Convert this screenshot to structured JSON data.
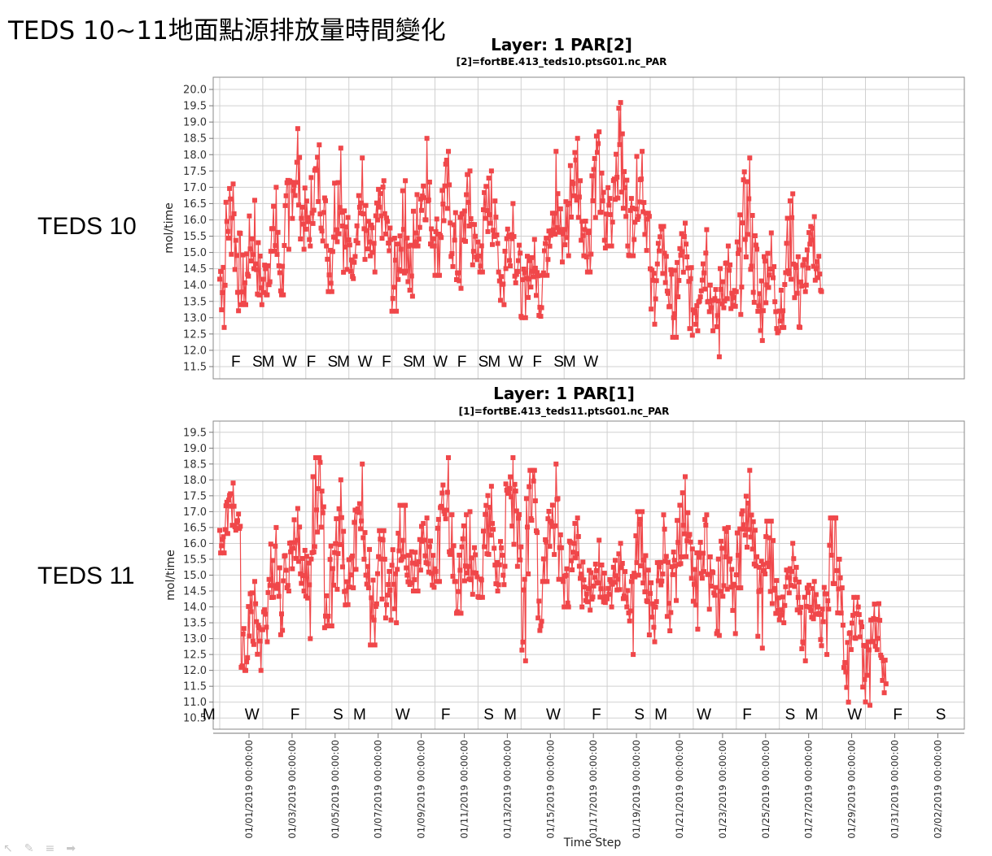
{
  "slide": {
    "title": "TEDS 10~11地面點源排放量時間變化",
    "labels": [
      "TEDS 10",
      "TEDS 11"
    ],
    "nav_icons": [
      "pointer-icon",
      "pen-icon",
      "menu-icon",
      "next-slide-icon"
    ]
  },
  "chart_data": [
    {
      "type": "line",
      "title": "Layer: 1 PAR[2]",
      "subtitle": "[2]=fortBE.413_teds10.ptsG01.nc_PAR",
      "ylabel": "mol/time",
      "xlabel": "",
      "ylim": [
        11.25,
        20.25
      ],
      "yticks": [
        11.5,
        12.0,
        12.5,
        13.0,
        13.5,
        14.0,
        14.5,
        15.0,
        15.5,
        16.0,
        16.5,
        17.0,
        17.5,
        18.0,
        18.5,
        19.0,
        19.5,
        20.0
      ],
      "x_range_days": [
        0,
        34
      ],
      "grid": true,
      "series_color": "#f0474a",
      "day_marks": [
        {
          "label": "F",
          "day": 0.75
        },
        {
          "label": "S",
          "day": 1.75
        },
        {
          "label": "M",
          "day": 2.25
        },
        {
          "label": "W",
          "day": 3.25
        },
        {
          "label": "F",
          "day": 4.25
        },
        {
          "label": "S",
          "day": 5.25
        },
        {
          "label": "M",
          "day": 5.75
        },
        {
          "label": "W",
          "day": 6.75
        },
        {
          "label": "F",
          "day": 7.75
        },
        {
          "label": "S",
          "day": 8.75
        },
        {
          "label": "M",
          "day": 9.25
        },
        {
          "label": "W",
          "day": 10.25
        },
        {
          "label": "F",
          "day": 11.25
        },
        {
          "label": "S",
          "day": 12.25
        },
        {
          "label": "M",
          "day": 12.75
        },
        {
          "label": "W",
          "day": 13.75
        },
        {
          "label": "F",
          "day": 14.75
        },
        {
          "label": "S",
          "day": 15.75
        },
        {
          "label": "M",
          "day": 16.25
        },
        {
          "label": "W",
          "day": 17.25
        }
      ],
      "daily": [
        {
          "day": 0,
          "min": 12.7,
          "max": 17.1,
          "mean": 15.2
        },
        {
          "day": 1,
          "min": 13.4,
          "max": 16.6,
          "mean": 14.6
        },
        {
          "day": 2,
          "min": 13.7,
          "max": 17.0,
          "mean": 14.7
        },
        {
          "day": 3,
          "min": 15.1,
          "max": 18.8,
          "mean": 16.6
        },
        {
          "day": 4,
          "min": 15.2,
          "max": 18.3,
          "mean": 16.5
        },
        {
          "day": 5,
          "min": 13.8,
          "max": 18.2,
          "mean": 15.8
        },
        {
          "day": 6,
          "min": 14.2,
          "max": 17.9,
          "mean": 15.7
        },
        {
          "day": 7,
          "min": 14.4,
          "max": 17.2,
          "mean": 15.6
        },
        {
          "day": 8,
          "min": 13.2,
          "max": 17.2,
          "mean": 14.8
        },
        {
          "day": 9,
          "min": 15.2,
          "max": 18.5,
          "mean": 16.3
        },
        {
          "day": 10,
          "min": 14.3,
          "max": 18.1,
          "mean": 15.9
        },
        {
          "day": 11,
          "min": 13.9,
          "max": 17.5,
          "mean": 15.5
        },
        {
          "day": 12,
          "min": 14.4,
          "max": 17.5,
          "mean": 15.8
        },
        {
          "day": 13,
          "min": 13.4,
          "max": 16.5,
          "mean": 14.9
        },
        {
          "day": 14,
          "min": 13.0,
          "max": 15.4,
          "mean": 14.1
        },
        {
          "day": 15,
          "min": 14.3,
          "max": 18.1,
          "mean": 15.8
        },
        {
          "day": 16,
          "min": 14.9,
          "max": 18.5,
          "mean": 16.6
        },
        {
          "day": 17,
          "min": 14.4,
          "max": 18.7,
          "mean": 16.3
        },
        {
          "day": 18,
          "min": 15.2,
          "max": 19.6,
          "mean": 17.1
        },
        {
          "day": 19,
          "min": 14.9,
          "max": 18.1,
          "mean": 16.4
        },
        {
          "day": 20,
          "min": 12.8,
          "max": 15.8,
          "mean": 14.3
        },
        {
          "day": 21,
          "min": 12.4,
          "max": 15.9,
          "mean": 14.1
        },
        {
          "day": 22,
          "min": 12.6,
          "max": 15.7,
          "mean": 14.0
        },
        {
          "day": 23,
          "min": 11.8,
          "max": 15.2,
          "mean": 13.6
        },
        {
          "day": 24,
          "min": 13.1,
          "max": 17.9,
          "mean": 15.2
        },
        {
          "day": 25,
          "min": 12.3,
          "max": 15.6,
          "mean": 14.0
        },
        {
          "day": 26,
          "min": 12.7,
          "max": 16.8,
          "mean": 14.4
        },
        {
          "day": 27,
          "min": 13.8,
          "max": 16.1,
          "mean": 14.6
        }
      ]
    },
    {
      "type": "line",
      "title": "Layer: 1 PAR[1]",
      "subtitle": "[1]=fortBE.413_teds11.ptsG01.nc_PAR",
      "ylabel": "mol/time",
      "xlabel": "Time Step",
      "ylim": [
        10.25,
        19.75
      ],
      "yticks": [
        10.5,
        11.0,
        11.5,
        12.0,
        12.5,
        13.0,
        13.5,
        14.0,
        14.5,
        15.0,
        15.5,
        16.0,
        16.5,
        17.0,
        17.5,
        18.0,
        18.5,
        19.0,
        19.5
      ],
      "x_range_days": [
        0,
        34
      ],
      "grid": true,
      "series_color": "#f0474a",
      "x_tick_labels": [
        {
          "label": "01/01/2019 00:00:00",
          "day": 0
        },
        {
          "label": "01/03/2019 00:00:00",
          "day": 2
        },
        {
          "label": "01/05/2019 00:00:00",
          "day": 4
        },
        {
          "label": "01/07/2019 00:00:00",
          "day": 6
        },
        {
          "label": "01/09/2019 00:00:00",
          "day": 8
        },
        {
          "label": "01/11/2019 00:00:00",
          "day": 10
        },
        {
          "label": "01/13/2019 00:00:00",
          "day": 12
        },
        {
          "label": "01/15/2019 00:00:00",
          "day": 14
        },
        {
          "label": "01/17/2019 00:00:00",
          "day": 16
        },
        {
          "label": "01/19/2019 00:00:00",
          "day": 18
        },
        {
          "label": "01/21/2019 00:00:00",
          "day": 20
        },
        {
          "label": "01/23/2019 00:00:00",
          "day": 22
        },
        {
          "label": "01/25/2019 00:00:00",
          "day": 24
        },
        {
          "label": "01/27/2019 00:00:00",
          "day": 26
        },
        {
          "label": "01/29/2019 00:00:00",
          "day": 28
        },
        {
          "label": "01/31/2019 00:00:00",
          "day": 30
        },
        {
          "label": "02/02/2019 00:00:00",
          "day": 32
        }
      ],
      "day_marks": [
        {
          "label": "M",
          "day": -0.5
        },
        {
          "label": "W",
          "day": 1.5
        },
        {
          "label": "F",
          "day": 3.5
        },
        {
          "label": "S",
          "day": 5.5
        },
        {
          "label": "M",
          "day": 6.5
        },
        {
          "label": "W",
          "day": 8.5
        },
        {
          "label": "F",
          "day": 10.5
        },
        {
          "label": "S",
          "day": 12.5
        },
        {
          "label": "M",
          "day": 13.5
        },
        {
          "label": "W",
          "day": 15.5
        },
        {
          "label": "F",
          "day": 17.5
        },
        {
          "label": "S",
          "day": 19.5
        },
        {
          "label": "M",
          "day": 20.5
        },
        {
          "label": "W",
          "day": 22.5
        },
        {
          "label": "F",
          "day": 24.5
        },
        {
          "label": "S",
          "day": 26.5
        },
        {
          "label": "M",
          "day": 27.5
        },
        {
          "label": "W",
          "day": 29.5
        },
        {
          "label": "F",
          "day": 31.5
        },
        {
          "label": "S",
          "day": 33.5
        }
      ],
      "daily": [
        {
          "day": 0,
          "min": 15.7,
          "max": 17.9,
          "mean": 16.6
        },
        {
          "day": 1,
          "min": 12.0,
          "max": 14.8,
          "mean": 13.0
        },
        {
          "day": 2,
          "min": 12.9,
          "max": 16.5,
          "mean": 14.6
        },
        {
          "day": 3,
          "min": 14.5,
          "max": 17.1,
          "mean": 15.6
        },
        {
          "day": 4,
          "min": 13.0,
          "max": 18.7,
          "mean": 16.1
        },
        {
          "day": 5,
          "min": 13.4,
          "max": 18.0,
          "mean": 15.0
        },
        {
          "day": 6,
          "min": 14.6,
          "max": 18.5,
          "mean": 16.0
        },
        {
          "day": 7,
          "min": 12.8,
          "max": 16.4,
          "mean": 14.6
        },
        {
          "day": 8,
          "min": 13.5,
          "max": 17.2,
          "mean": 15.5
        },
        {
          "day": 9,
          "min": 14.5,
          "max": 16.8,
          "mean": 15.5
        },
        {
          "day": 10,
          "min": 14.8,
          "max": 18.7,
          "mean": 16.3
        },
        {
          "day": 11,
          "min": 13.8,
          "max": 17.0,
          "mean": 15.2
        },
        {
          "day": 12,
          "min": 14.3,
          "max": 17.8,
          "mean": 15.7
        },
        {
          "day": 13,
          "min": 14.7,
          "max": 18.7,
          "mean": 16.4
        },
        {
          "day": 14,
          "min": 12.3,
          "max": 18.3,
          "mean": 15.6
        },
        {
          "day": 15,
          "min": 14.8,
          "max": 18.5,
          "mean": 16.0
        },
        {
          "day": 16,
          "min": 14.0,
          "max": 16.8,
          "mean": 15.2
        },
        {
          "day": 17,
          "min": 13.9,
          "max": 16.1,
          "mean": 14.7
        },
        {
          "day": 18,
          "min": 14.0,
          "max": 16.0,
          "mean": 14.7
        },
        {
          "day": 19,
          "min": 12.5,
          "max": 17.0,
          "mean": 14.9
        },
        {
          "day": 20,
          "min": 12.9,
          "max": 16.9,
          "mean": 14.7
        },
        {
          "day": 21,
          "min": 14.2,
          "max": 18.1,
          "mean": 15.8
        },
        {
          "day": 22,
          "min": 13.3,
          "max": 16.9,
          "mean": 15.0
        },
        {
          "day": 23,
          "min": 13.1,
          "max": 16.5,
          "mean": 14.8
        },
        {
          "day": 24,
          "min": 14.6,
          "max": 18.3,
          "mean": 16.0
        },
        {
          "day": 25,
          "min": 12.7,
          "max": 16.7,
          "mean": 14.8
        },
        {
          "day": 26,
          "min": 13.5,
          "max": 16.0,
          "mean": 14.6
        },
        {
          "day": 27,
          "min": 12.3,
          "max": 14.8,
          "mean": 13.9
        },
        {
          "day": 28,
          "min": 12.5,
          "max": 16.8,
          "mean": 14.8
        },
        {
          "day": 29,
          "min": 11.0,
          "max": 14.3,
          "mean": 12.9
        },
        {
          "day": 30,
          "min": 10.9,
          "max": 14.1,
          "mean": 12.7
        }
      ]
    }
  ]
}
